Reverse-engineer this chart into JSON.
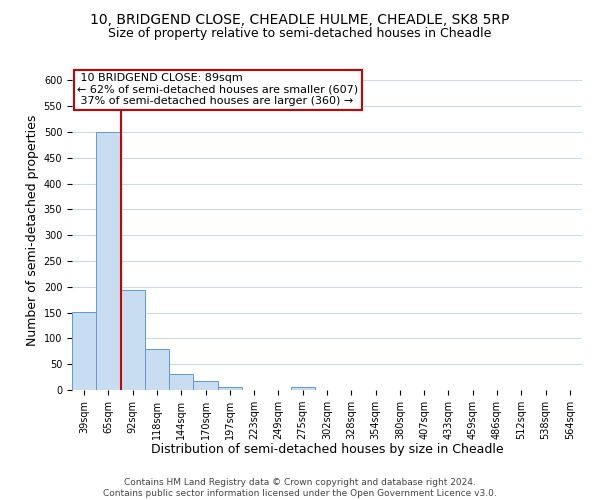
{
  "title": "10, BRIDGEND CLOSE, CHEADLE HULME, CHEADLE, SK8 5RP",
  "subtitle": "Size of property relative to semi-detached houses in Cheadle",
  "xlabel": "Distribution of semi-detached houses by size in Cheadle",
  "ylabel": "Number of semi-detached properties",
  "footer_line1": "Contains HM Land Registry data © Crown copyright and database right 2024.",
  "footer_line2": "Contains public sector information licensed under the Open Government Licence v3.0.",
  "bin_labels": [
    "39sqm",
    "65sqm",
    "92sqm",
    "118sqm",
    "144sqm",
    "170sqm",
    "197sqm",
    "223sqm",
    "249sqm",
    "275sqm",
    "302sqm",
    "328sqm",
    "354sqm",
    "380sqm",
    "407sqm",
    "433sqm",
    "459sqm",
    "486sqm",
    "512sqm",
    "538sqm",
    "564sqm"
  ],
  "bar_values": [
    152,
    500,
    193,
    80,
    31,
    18,
    5,
    0,
    0,
    5,
    0,
    0,
    0,
    0,
    0,
    0,
    0,
    0,
    0,
    0,
    0
  ],
  "bar_color": "#c9ddf0",
  "bar_edge_color": "#5b9bd5",
  "property_line_x": 1.5,
  "property_label": "10 BRIDGEND CLOSE: 89sqm",
  "smaller_pct": 62,
  "smaller_count": 607,
  "larger_pct": 37,
  "larger_count": 360,
  "annotation_box_color": "#ffffff",
  "annotation_box_edge": "#cc0000",
  "property_line_color": "#cc0000",
  "ylim": [
    0,
    620
  ],
  "yticks": [
    0,
    50,
    100,
    150,
    200,
    250,
    300,
    350,
    400,
    450,
    500,
    550,
    600
  ],
  "background_color": "#ffffff",
  "grid_color": "#c8d8ec",
  "title_fontsize": 10,
  "subtitle_fontsize": 9,
  "axis_label_fontsize": 9,
  "tick_fontsize": 7,
  "footer_fontsize": 6.5,
  "annotation_fontsize": 8
}
